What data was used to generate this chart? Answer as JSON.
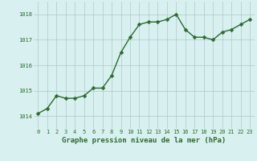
{
  "x": [
    0,
    1,
    2,
    3,
    4,
    5,
    6,
    7,
    8,
    9,
    10,
    11,
    12,
    13,
    14,
    15,
    16,
    17,
    18,
    19,
    20,
    21,
    22,
    23
  ],
  "y": [
    1014.1,
    1014.3,
    1014.8,
    1014.7,
    1014.7,
    1014.8,
    1015.1,
    1015.1,
    1015.6,
    1016.5,
    1017.1,
    1017.6,
    1017.7,
    1017.7,
    1017.8,
    1018.0,
    1017.4,
    1017.1,
    1017.1,
    1017.0,
    1017.3,
    1017.4,
    1017.6,
    1017.8
  ],
  "line_color": "#2d6a2d",
  "marker_color": "#2d6a2d",
  "bg_color": "#d8f0f0",
  "grid_color": "#adc8c8",
  "xlabel": "Graphe pression niveau de la mer (hPa)",
  "xlabel_color": "#2d6a2d",
  "tick_color": "#2d6a2d",
  "ylim": [
    1013.5,
    1018.5
  ],
  "xlim": [
    -0.5,
    23.5
  ],
  "yticks": [
    1014,
    1015,
    1016,
    1017,
    1018
  ],
  "xticks": [
    0,
    1,
    2,
    3,
    4,
    5,
    6,
    7,
    8,
    9,
    10,
    11,
    12,
    13,
    14,
    15,
    16,
    17,
    18,
    19,
    20,
    21,
    22,
    23
  ],
  "marker_size": 2.5,
  "line_width": 1.0,
  "tick_fontsize": 5.0,
  "xlabel_fontsize": 6.5
}
